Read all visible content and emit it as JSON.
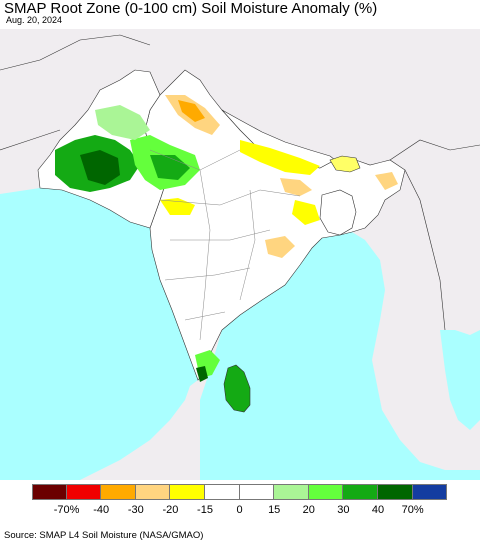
{
  "title": "SMAP Root Zone (0-100 cm) Soil Moisture Anomaly (%)",
  "date": "Aug. 20, 2024",
  "source": "Source: SMAP L4 Soil Moisture (NASA/GMAO)",
  "colors": {
    "ocean": "#aaffff",
    "land_outside": "#f0edf0",
    "land_normal": "#ffffff",
    "border": "#333333"
  },
  "legend": {
    "colors": [
      "#6b0000",
      "#f00000",
      "#ffaa00",
      "#ffd580",
      "#ffff00",
      "#ffffff",
      "#ffffff",
      "#aaf596",
      "#64ff3c",
      "#14aa14",
      "#006600",
      "#143ca0"
    ],
    "tick_labels": [
      "-70%",
      "-40",
      "-30",
      "-20",
      "-15",
      "0",
      "15",
      "20",
      "30",
      "40",
      "70%"
    ]
  }
}
